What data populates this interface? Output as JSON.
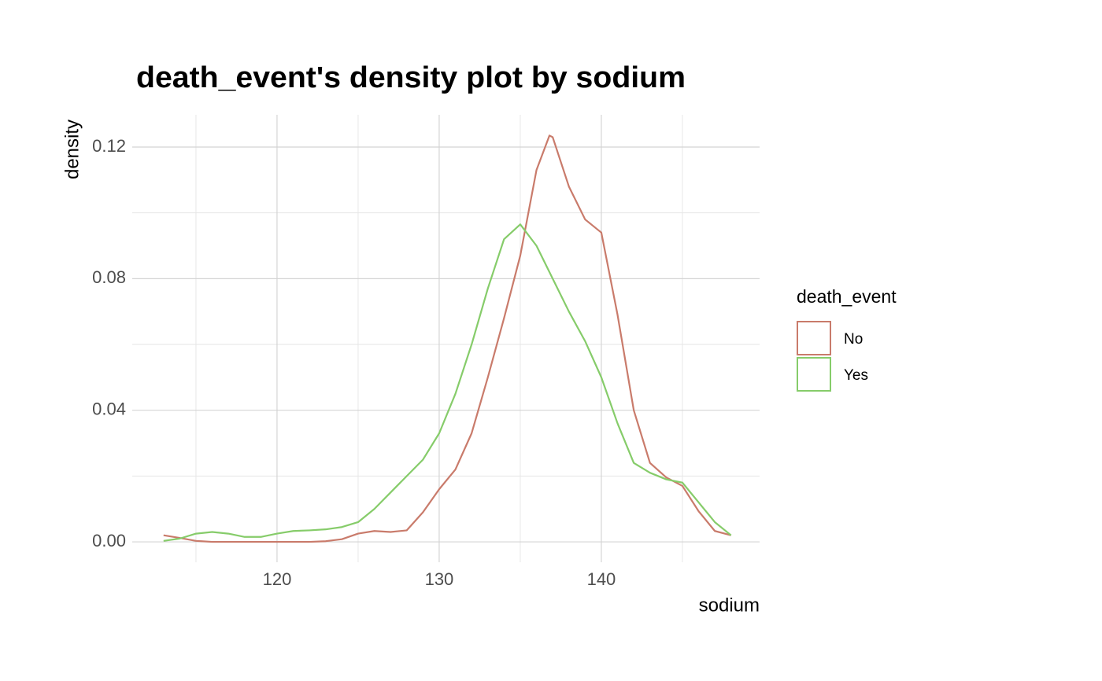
{
  "chart_data": {
    "type": "line",
    "title": "death_event's density plot by sodium",
    "x_label": "sodium",
    "y_label": "density",
    "legend_title": "death_event",
    "legend_position": "right",
    "grid": true,
    "xlim": [
      111.07,
      149.76
    ],
    "ylim": [
      -0.0062,
      0.1298
    ],
    "xticks": [
      120,
      130,
      140
    ],
    "xminor": [
      115,
      125,
      135,
      145
    ],
    "yticks": [
      {
        "value": 0,
        "label": "0.00"
      },
      {
        "value": 0.04,
        "label": "0.04"
      },
      {
        "value": 0.08,
        "label": "0.08"
      },
      {
        "value": 0.12,
        "label": "0.12"
      }
    ],
    "yminor": [
      0.02,
      0.06,
      0.1
    ],
    "x": [
      113,
      114,
      115,
      116,
      117,
      118,
      119,
      120,
      121,
      122,
      123,
      124,
      125,
      126,
      127,
      128,
      129,
      130,
      131,
      132,
      133,
      134,
      135,
      136,
      136.8,
      137,
      138,
      139,
      140,
      141,
      142,
      143,
      144,
      145,
      146,
      147,
      148
    ],
    "series": [
      {
        "name": "No",
        "color": "#c97b6b",
        "values": [
          0.002,
          0.0012,
          0.0003,
          0,
          0,
          0,
          0,
          0,
          0,
          0,
          0.0002,
          0.0008,
          0.0025,
          0.0033,
          0.003,
          0.0035,
          0.009,
          0.016,
          0.022,
          0.033,
          0.05,
          0.068,
          0.087,
          0.113,
          0.1235,
          0.123,
          0.108,
          0.098,
          0.094,
          0.069,
          0.04,
          0.024,
          0.0196,
          0.017,
          0.0093,
          0.0033,
          0.002
        ]
      },
      {
        "name": "Yes",
        "color": "#86cc6a",
        "values": [
          0.0003,
          0.001,
          0.0025,
          0.003,
          0.0025,
          0.0015,
          0.0015,
          0.0025,
          0.0033,
          0.0035,
          0.0038,
          0.0045,
          0.006,
          0.01,
          0.015,
          0.02,
          0.025,
          0.033,
          0.045,
          0.06,
          0.077,
          0.092,
          0.0965,
          0.09,
          0.082,
          0.08,
          0.07,
          0.061,
          0.05,
          0.036,
          0.024,
          0.021,
          0.019,
          0.018,
          0.012,
          0.006,
          0.002
        ]
      }
    ]
  }
}
